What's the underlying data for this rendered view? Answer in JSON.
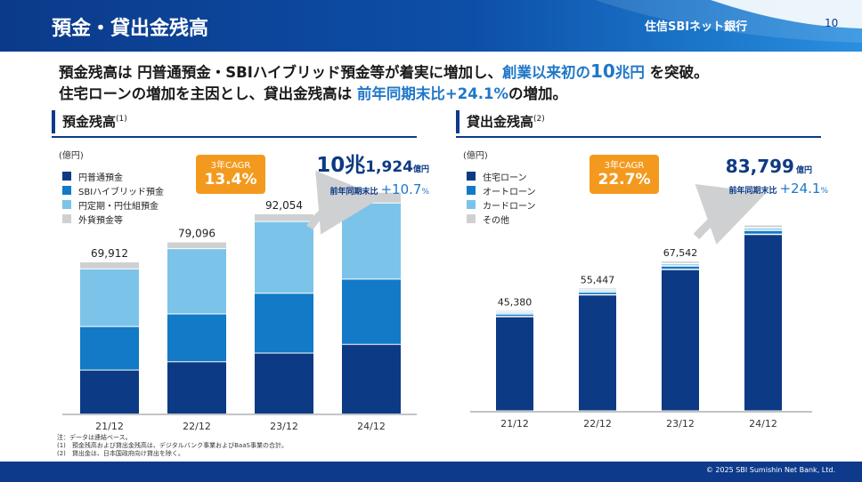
{
  "header": {
    "title": "預金・貸出金残高",
    "logo": "住信SBIネット銀行",
    "page_number": "10"
  },
  "lead": {
    "line1_a": "預金残高は 円普通預金・SBIハイブリッド預金等が着実に増加し、",
    "line1_b": "創業以来初の",
    "line1_c": "10",
    "line1_d": "兆円",
    "line1_e": " を突破。",
    "line2_a": "住宅ローンの増加を主因とし、貸出金残高は ",
    "line2_b": "前年同期末比+24.1%",
    "line2_c": "の増加。"
  },
  "left_panel": {
    "title": "預金残高",
    "title_note": "(1)",
    "unit": "(億円)",
    "cagr_label": "3年CAGR",
    "cagr_value": "13.4%",
    "highlight_total_a": "10兆",
    "highlight_total_b": "1,924",
    "highlight_total_c": "億円",
    "yoy_label": "前年同期末比",
    "yoy_value": "+10.7",
    "yoy_unit": "%"
  },
  "right_panel": {
    "title": "貸出金残高",
    "title_note": "(2)",
    "unit": "(億円)",
    "cagr_label": "3年CAGR",
    "cagr_value": "22.7%",
    "highlight_total_a": "83,799",
    "highlight_total_b": "億円",
    "yoy_label": "前年同期末比",
    "yoy_value": "+24.1",
    "yoy_unit": "%"
  },
  "notes": [
    "注：データは連結ベース。",
    "(1)　預金残高および貸出金残高は、デジタルバンク事業およびBaaS事業の合計。",
    "(2)　貸出金は、日本国政府向け貸出を除く。"
  ],
  "footer": {
    "copyright": "© 2025 SBI Sumishin Net Bank, Ltd."
  },
  "colors": {
    "dark_navy": "#0d3a84",
    "mid_blue": "#127ac6",
    "light_blue": "#7cc3ea",
    "gray": "#cfd0d2",
    "orange": "#f39a1e",
    "accent_blue": "#1f77c8"
  },
  "chart_data": [
    {
      "type": "bar",
      "stacked": true,
      "categories": [
        "21/12",
        "22/12",
        "23/12",
        "24/12"
      ],
      "totals": [
        "69,912",
        "79,096",
        "92,054",
        ""
      ],
      "ylim": [
        0,
        110000
      ],
      "series": [
        {
          "name": "円普通預金",
          "color": "#0d3a84",
          "values": [
            20200,
            24000,
            28000,
            32000
          ]
        },
        {
          "name": "SBIハイブリッド預金",
          "color": "#127ac6",
          "values": [
            20000,
            22000,
            27500,
            30000
          ]
        },
        {
          "name": "円定期・円仕組預金",
          "color": "#7cc3ea",
          "values": [
            26500,
            30000,
            33000,
            35000
          ]
        },
        {
          "name": "外貨預金等",
          "color": "#cfd0d2",
          "values": [
            3212,
            3096,
            3554,
            4924
          ]
        }
      ]
    },
    {
      "type": "bar",
      "stacked": true,
      "categories": [
        "21/12",
        "22/12",
        "23/12",
        "24/12"
      ],
      "totals": [
        "45,380",
        "55,447",
        "67,542",
        ""
      ],
      "ylim": [
        0,
        98000
      ],
      "series": [
        {
          "name": "住宅ローン",
          "color": "#0d3a84",
          "values": [
            42500,
            52300,
            63700,
            79500
          ]
        },
        {
          "name": "オートローン",
          "color": "#127ac6",
          "values": [
            1200,
            1300,
            1600,
            1800
          ]
        },
        {
          "name": "カードローン",
          "color": "#7cc3ea",
          "values": [
            800,
            900,
            1000,
            1100
          ]
        },
        {
          "name": "その他",
          "color": "#cfd0d2",
          "values": [
            880,
            947,
            1242,
            1399
          ]
        }
      ]
    }
  ]
}
